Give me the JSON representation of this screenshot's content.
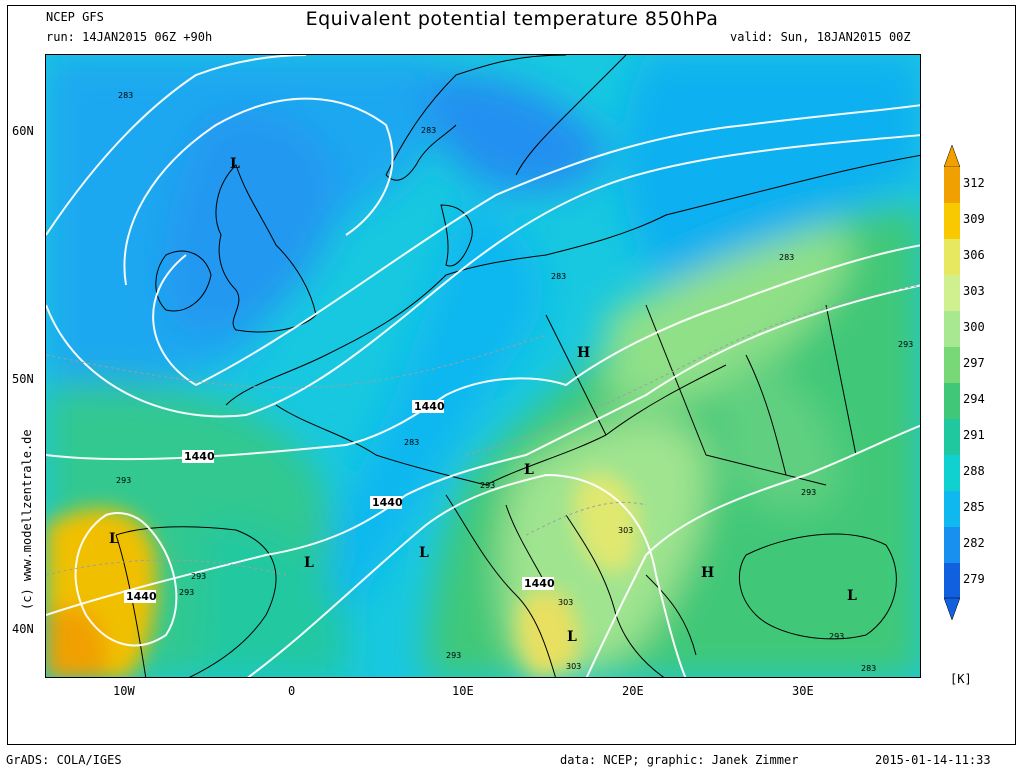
{
  "header": {
    "model": "NCEP GFS",
    "run": "run: 14JAN2015 06Z +90h",
    "title": "Equivalent potential temperature 850hPa",
    "valid": "valid: Sun, 18JAN2015 00Z"
  },
  "axes": {
    "lat_labels": [
      "60N",
      "50N",
      "40N"
    ],
    "lon_labels": [
      "10W",
      "0",
      "10E",
      "20E",
      "30E"
    ]
  },
  "colorbar": {
    "unit": "[K]",
    "levels": [
      "312",
      "309",
      "306",
      "303",
      "300",
      "297",
      "294",
      "291",
      "288",
      "285",
      "282",
      "279"
    ],
    "colors": [
      "#f0a000",
      "#f8c800",
      "#e8e860",
      "#d0f090",
      "#a8e890",
      "#78d878",
      "#40c878",
      "#20c8a0",
      "#10d0d0",
      "#10b8f0",
      "#1890f0",
      "#1060e0"
    ]
  },
  "map": {
    "contour_labels": [
      "1440",
      "1440",
      "1440",
      "1440",
      "1440"
    ],
    "theta_labels": [
      "283",
      "283",
      "283",
      "283",
      "283",
      "283",
      "293",
      "293",
      "293",
      "293",
      "293",
      "293",
      "293",
      "293",
      "303",
      "303",
      "303"
    ],
    "pressure_centers": [
      "L",
      "L",
      "L",
      "L",
      "L",
      "L",
      "H",
      "H"
    ],
    "side_credit": "(c) www.modellzentrale.de"
  },
  "footer": {
    "software": "GrADS: COLA/IGES",
    "credit": "data: NCEP; graphic: Janek Zimmer",
    "timestamp": "2015-01-14-11:33"
  }
}
